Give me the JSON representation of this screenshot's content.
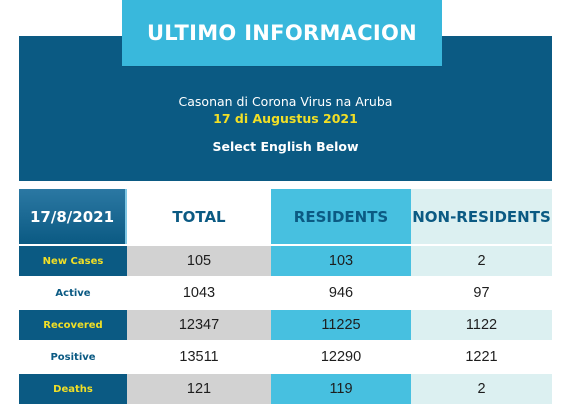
{
  "banner": {
    "title": "ULTIMO INFORMACION",
    "subtitle": "Casonan di Corona Virus na Aruba",
    "date": "17 di Augustus 2021",
    "note": "Select English Below"
  },
  "colors": {
    "navy": "#0b5a83",
    "cyan": "#39b8dc",
    "residents_blue": "#47c0e0",
    "nonresidents_tint": "#dcf0f1",
    "total_gray": "#d2d2d2",
    "yellow": "#f1df26"
  },
  "table": {
    "headers": [
      "17/8/2021",
      "TOTAL",
      "RESIDENTS",
      "NON-RESIDENTS"
    ],
    "rows": [
      {
        "label": "New Cases",
        "total": "105",
        "residents": "103",
        "non_residents": "2"
      },
      {
        "label": "Active",
        "total": "1043",
        "residents": "946",
        "non_residents": "97"
      },
      {
        "label": "Recovered",
        "total": "12347",
        "residents": "11225",
        "non_residents": "1122"
      },
      {
        "label": "Positive",
        "total": "13511",
        "residents": "12290",
        "non_residents": "1221"
      },
      {
        "label": "Deaths",
        "total": "121",
        "residents": "119",
        "non_residents": "2"
      }
    ]
  }
}
